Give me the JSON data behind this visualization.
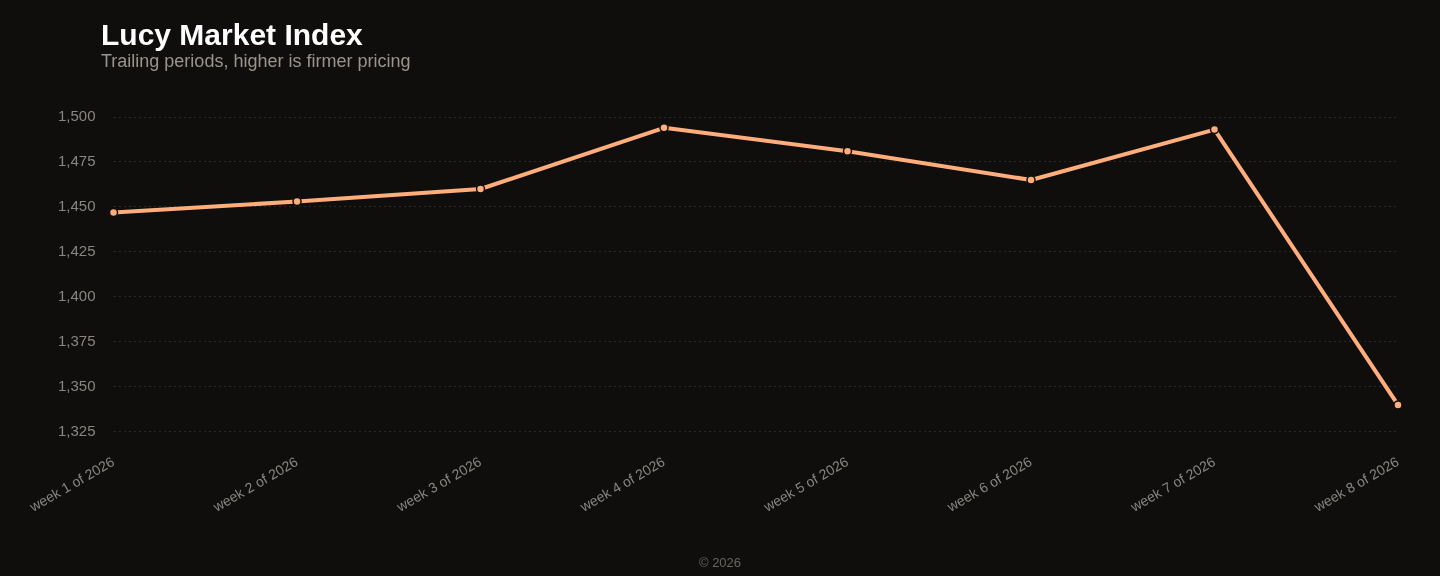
{
  "chart_data": {
    "type": "line",
    "title": "Lucy Market Index",
    "subtitle": "Trailing periods, higher is firmer pricing",
    "categories": [
      "week 1 of 2026",
      "week 2 of 2026",
      "week 3 of 2026",
      "week 4 of 2026",
      "week 5 of 2026",
      "week 6 of 2026",
      "week 7 of 2026",
      "week 8 of 2026"
    ],
    "series": [
      {
        "color": "#ffad7a",
        "values": [
          1447,
          1453,
          1460,
          1494,
          1481,
          1465,
          1493,
          1340
        ]
      }
    ],
    "ylim": [
      1325,
      1500
    ],
    "yticks": [
      {
        "value": 1325,
        "label": "1,325"
      },
      {
        "value": 1350,
        "label": "1,350"
      },
      {
        "value": 1375,
        "label": "1,375"
      },
      {
        "value": 1400,
        "label": "1,400"
      },
      {
        "value": 1425,
        "label": "1,425"
      },
      {
        "value": 1450,
        "label": "1,450"
      },
      {
        "value": 1475,
        "label": "1,475"
      },
      {
        "value": 1500,
        "label": "1,500"
      }
    ],
    "grid": "y",
    "legend": false,
    "marker": "circle",
    "line_style": "solid",
    "annotations": [
      "© 2026"
    ]
  }
}
